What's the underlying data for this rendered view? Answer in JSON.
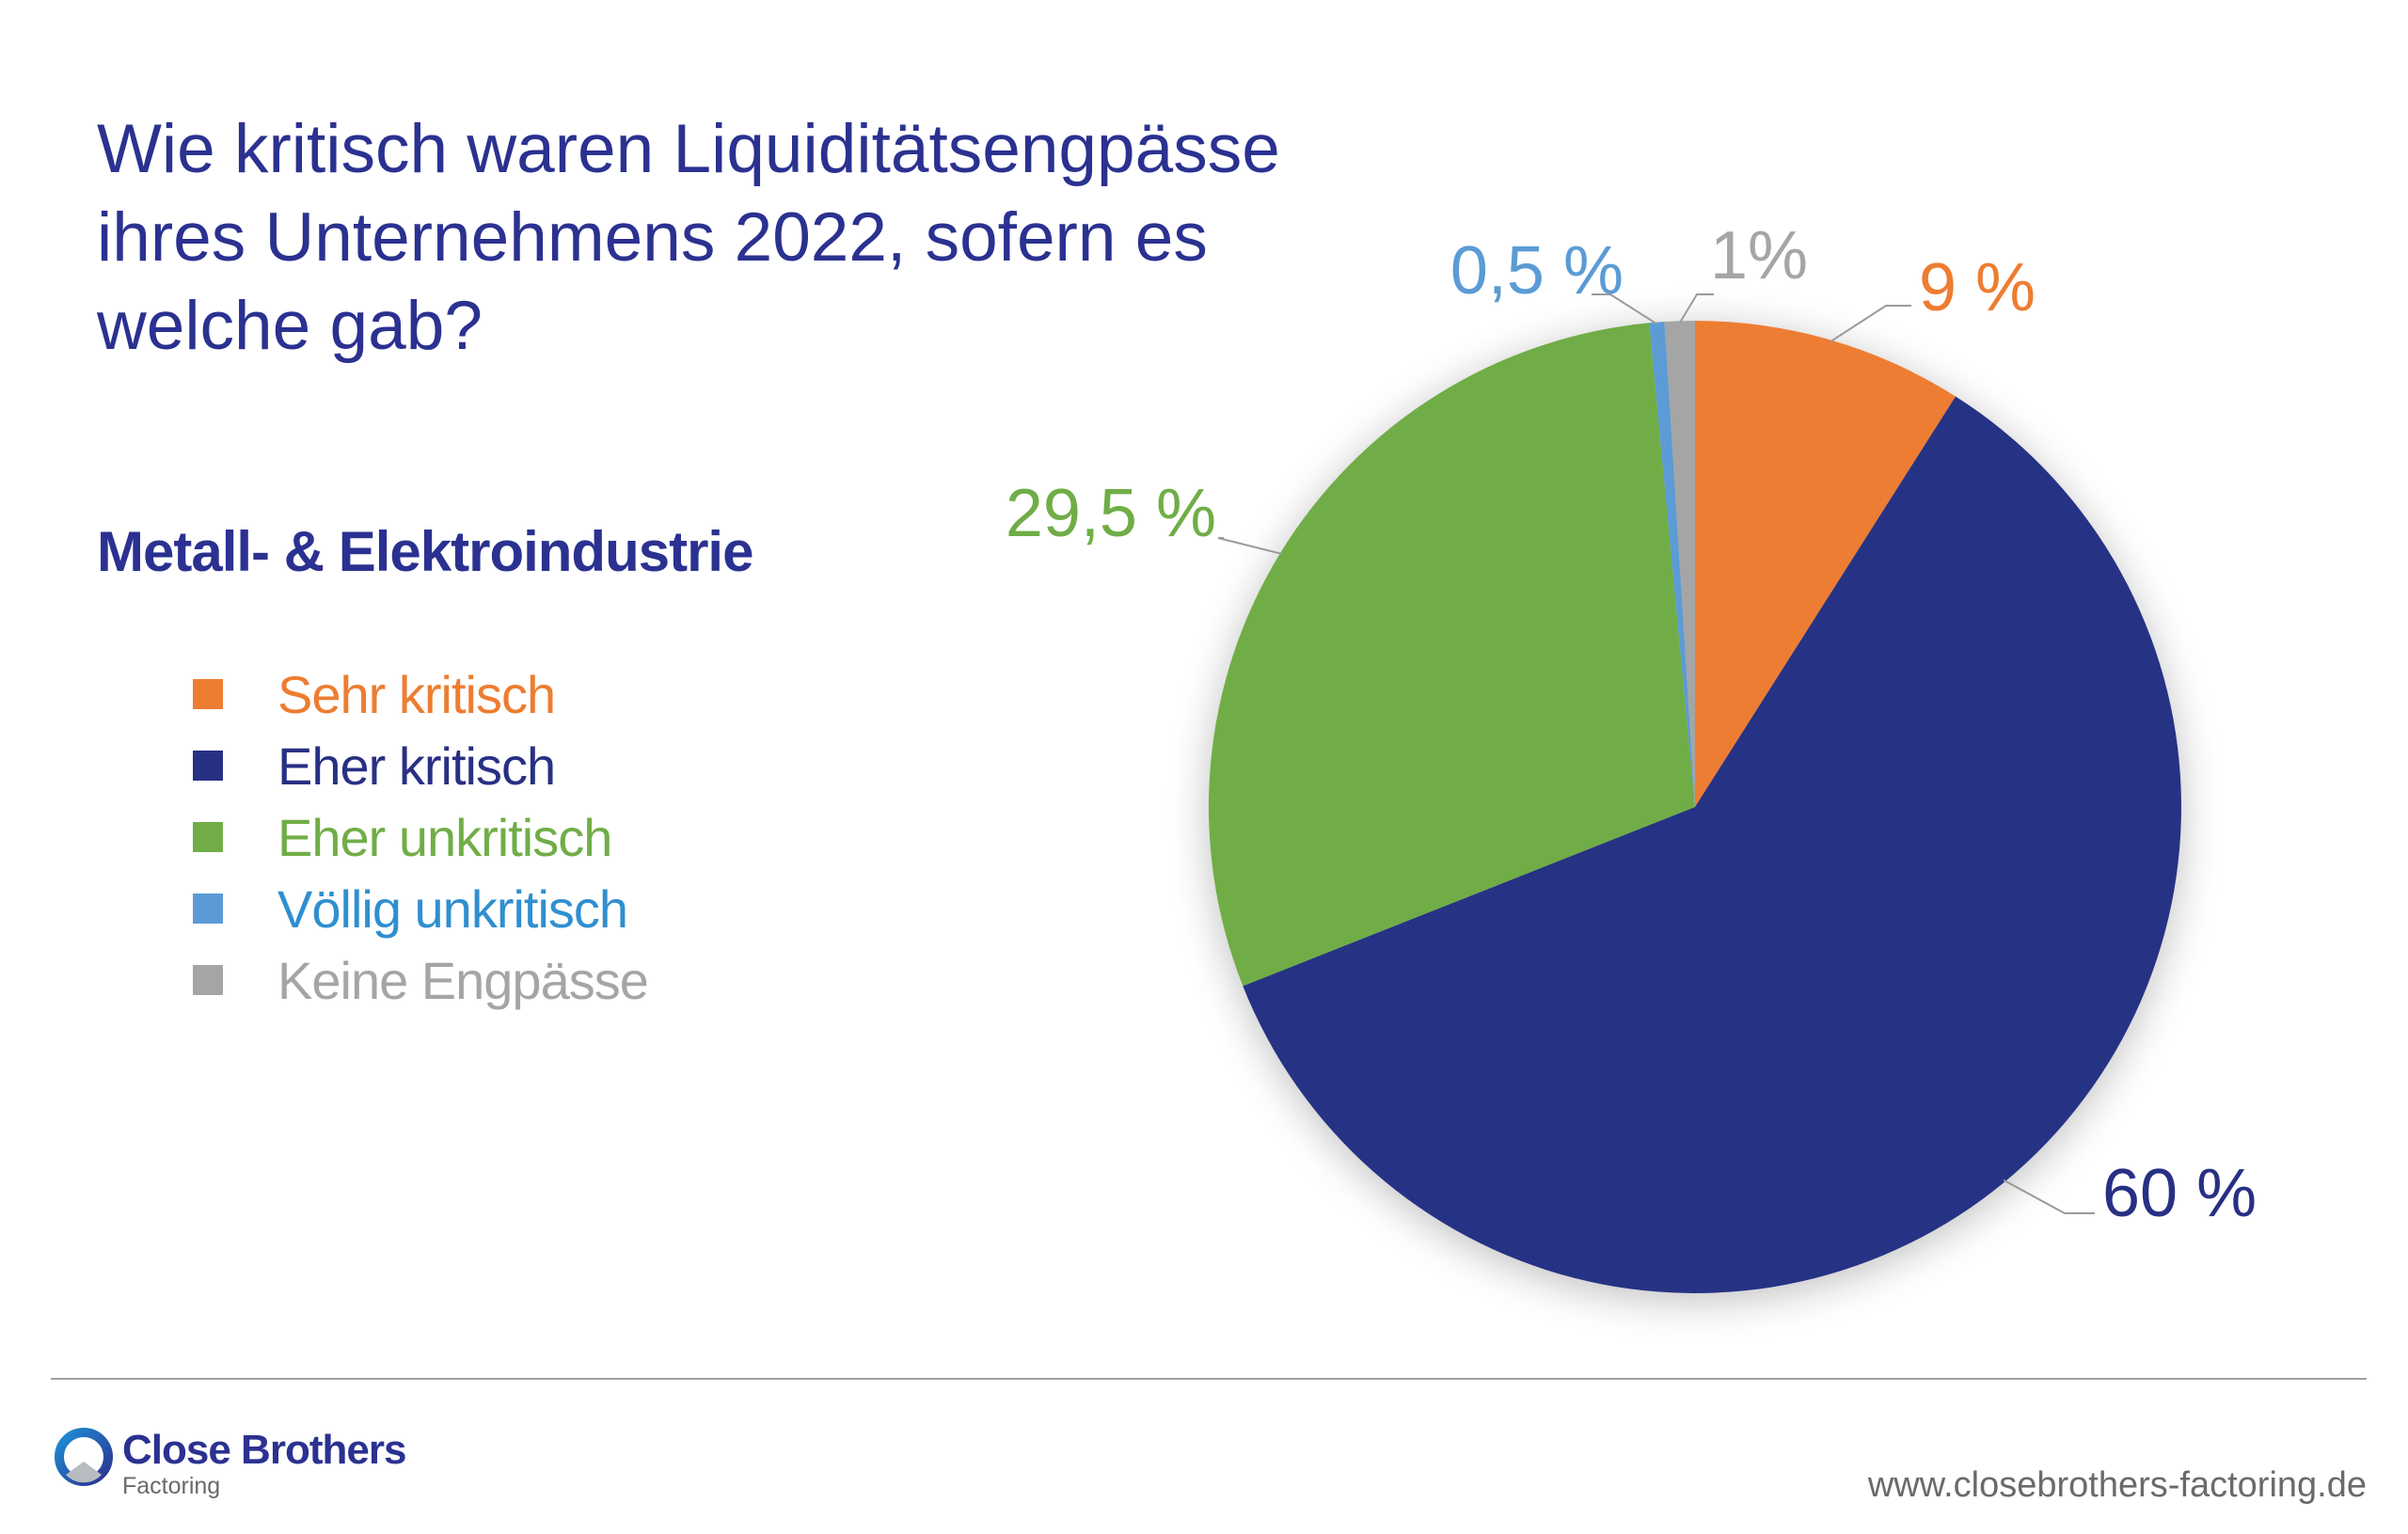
{
  "title": "Wie kritisch waren Liquiditätsengpässe ihres Unternehmens 2022, sofern es welche gab?",
  "subtitle": "Metall- & Elektroindustrie",
  "chart_data": {
    "type": "pie",
    "start": "top",
    "direction": "clockwise",
    "legend_position": "left",
    "slices": [
      {
        "name": "Sehr kritisch",
        "value": 9,
        "label": "9 %",
        "color": "#ED7D31"
      },
      {
        "name": "Eher kritisch",
        "value": 60,
        "label": "60 %",
        "color": "#283084"
      },
      {
        "name": "Eher unkritisch",
        "value": 29.5,
        "label": "29,5 %",
        "color": "#70AD47"
      },
      {
        "name": "Völlig unkritisch",
        "value": 0.5,
        "label": "0,5 %",
        "color": "#5B9BD5"
      },
      {
        "name": "Keine Engpässe",
        "value": 1,
        "label": "1%",
        "color": "#A5A5A5"
      }
    ]
  },
  "footer": {
    "logo_name": "Close Brothers",
    "logo_sub": "Factoring",
    "url": "www.closebrothers-factoring.de"
  }
}
